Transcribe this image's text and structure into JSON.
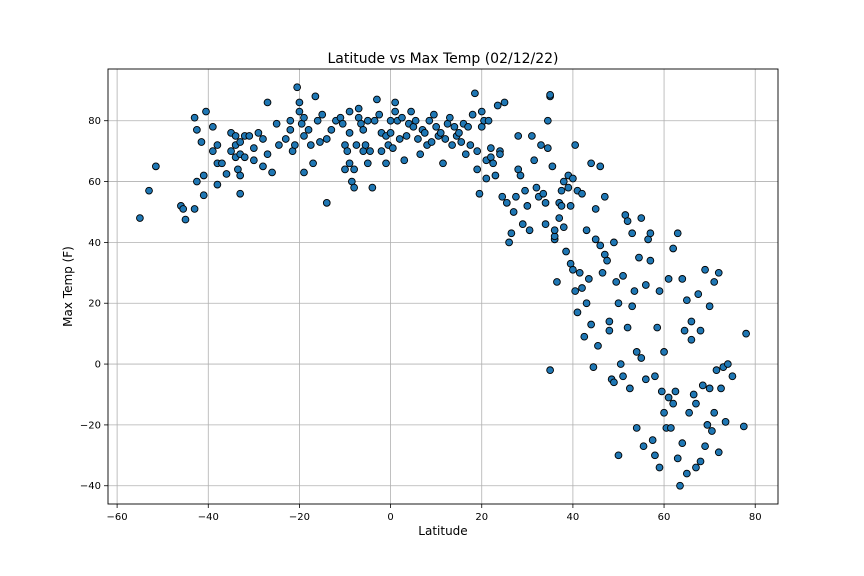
{
  "chart_data": {
    "type": "scatter",
    "title": "Latitude vs Max Temp (02/12/22)",
    "xlabel": "Latitude",
    "ylabel": "Max Temp (F)",
    "xlim": [
      -62,
      85
    ],
    "ylim": [
      -46,
      97
    ],
    "xticks": [
      -60,
      -40,
      -20,
      0,
      20,
      40,
      60,
      80
    ],
    "yticks": [
      -40,
      -20,
      0,
      20,
      40,
      60,
      80
    ],
    "grid": true,
    "legend": "none",
    "marker_color": "#1f77b4",
    "marker_edge_color": "#000000",
    "points": [
      [
        -55,
        48
      ],
      [
        -53,
        57
      ],
      [
        -51.5,
        65
      ],
      [
        -46,
        52
      ],
      [
        -45.5,
        51
      ],
      [
        -45,
        47.5
      ],
      [
        -43,
        51
      ],
      [
        -42.5,
        60
      ],
      [
        -42.5,
        77
      ],
      [
        -43,
        81
      ],
      [
        -41,
        62
      ],
      [
        -41,
        55.5
      ],
      [
        -40.5,
        83
      ],
      [
        -41.5,
        73
      ],
      [
        -39,
        70
      ],
      [
        -39,
        78
      ],
      [
        -38,
        72
      ],
      [
        -38,
        66
      ],
      [
        -38,
        59
      ],
      [
        -37,
        66
      ],
      [
        -36,
        62.5
      ],
      [
        -35,
        76
      ],
      [
        -35,
        70
      ],
      [
        -34,
        68
      ],
      [
        -34,
        75
      ],
      [
        -34,
        72
      ],
      [
        -33.5,
        64
      ],
      [
        -33,
        62
      ],
      [
        -33,
        56
      ],
      [
        -33,
        69
      ],
      [
        -33,
        73
      ],
      [
        -32,
        75
      ],
      [
        -32,
        68
      ],
      [
        -31,
        75
      ],
      [
        -30,
        67
      ],
      [
        -30,
        71
      ],
      [
        -29,
        76
      ],
      [
        -28,
        74
      ],
      [
        -28,
        65
      ],
      [
        -27,
        69
      ],
      [
        -27,
        86
      ],
      [
        -26,
        63
      ],
      [
        -25,
        79
      ],
      [
        -24.5,
        72
      ],
      [
        -23,
        74
      ],
      [
        -22,
        80
      ],
      [
        -22,
        77
      ],
      [
        -21.5,
        70
      ],
      [
        -21,
        72
      ],
      [
        -20.5,
        91
      ],
      [
        -20,
        83
      ],
      [
        -20,
        86
      ],
      [
        -19.5,
        79
      ],
      [
        -19,
        81
      ],
      [
        -19,
        75
      ],
      [
        -19,
        63
      ],
      [
        -18,
        77
      ],
      [
        -17.5,
        72
      ],
      [
        -17,
        66
      ],
      [
        -16.5,
        88
      ],
      [
        -16,
        80
      ],
      [
        -15.5,
        73
      ],
      [
        -15,
        82
      ],
      [
        -14,
        74
      ],
      [
        -14,
        53
      ],
      [
        -13,
        77
      ],
      [
        -12,
        80
      ],
      [
        -11,
        81
      ],
      [
        -10.5,
        79
      ],
      [
        -10,
        72
      ],
      [
        -10,
        64
      ],
      [
        -9.5,
        70
      ],
      [
        -9,
        83
      ],
      [
        -9,
        76
      ],
      [
        -9,
        66
      ],
      [
        -8.5,
        60
      ],
      [
        -8,
        58
      ],
      [
        -8,
        64
      ],
      [
        -7.5,
        72
      ],
      [
        -7,
        84
      ],
      [
        -7,
        81
      ],
      [
        -6.5,
        79
      ],
      [
        -6,
        77
      ],
      [
        -6,
        70
      ],
      [
        -5.5,
        72
      ],
      [
        -5,
        66
      ],
      [
        -5,
        80
      ],
      [
        -4.5,
        70
      ],
      [
        -4,
        58
      ],
      [
        -3.5,
        80
      ],
      [
        -3,
        87
      ],
      [
        -2.5,
        82
      ],
      [
        -2,
        76
      ],
      [
        -2,
        70
      ],
      [
        -1,
        75
      ],
      [
        -1,
        66
      ],
      [
        -0.5,
        72
      ],
      [
        0,
        80
      ],
      [
        0,
        76
      ],
      [
        0.5,
        71
      ],
      [
        1,
        83
      ],
      [
        1,
        86
      ],
      [
        1.5,
        80
      ],
      [
        2,
        74
      ],
      [
        2.5,
        81
      ],
      [
        3,
        67
      ],
      [
        3.5,
        75
      ],
      [
        4,
        79
      ],
      [
        4.5,
        83
      ],
      [
        5,
        78
      ],
      [
        5.5,
        80
      ],
      [
        6,
        74
      ],
      [
        6.5,
        69
      ],
      [
        7,
        77
      ],
      [
        7.5,
        76
      ],
      [
        8,
        72
      ],
      [
        8.5,
        80
      ],
      [
        9,
        73
      ],
      [
        9.5,
        82
      ],
      [
        10,
        78
      ],
      [
        10.5,
        75
      ],
      [
        11,
        76
      ],
      [
        11.5,
        66
      ],
      [
        12,
        74
      ],
      [
        12.5,
        79
      ],
      [
        13,
        81
      ],
      [
        13.5,
        72
      ],
      [
        14,
        78
      ],
      [
        14.5,
        75
      ],
      [
        15,
        76
      ],
      [
        15.5,
        73
      ],
      [
        16,
        79
      ],
      [
        16.5,
        69
      ],
      [
        17,
        78
      ],
      [
        17.5,
        72
      ],
      [
        18,
        82
      ],
      [
        18.5,
        89
      ],
      [
        19,
        70
      ],
      [
        19,
        64
      ],
      [
        19.5,
        56
      ],
      [
        20,
        83
      ],
      [
        20,
        78
      ],
      [
        20.5,
        80
      ],
      [
        21,
        61
      ],
      [
        21,
        67
      ],
      [
        21.5,
        80
      ],
      [
        22,
        71
      ],
      [
        22,
        68
      ],
      [
        22.5,
        66
      ],
      [
        23,
        62
      ],
      [
        23.5,
        85
      ],
      [
        24,
        70
      ],
      [
        24,
        69
      ],
      [
        24.5,
        55
      ],
      [
        25,
        86
      ],
      [
        25.5,
        53
      ],
      [
        26,
        40
      ],
      [
        26.5,
        43
      ],
      [
        27,
        50
      ],
      [
        27.5,
        55
      ],
      [
        28,
        75
      ],
      [
        28,
        64
      ],
      [
        28.5,
        62
      ],
      [
        29,
        46
      ],
      [
        29.5,
        57
      ],
      [
        30,
        52
      ],
      [
        30.5,
        44
      ],
      [
        31,
        75
      ],
      [
        31.5,
        67
      ],
      [
        32,
        58
      ],
      [
        32.5,
        55
      ],
      [
        33,
        72
      ],
      [
        33.5,
        56
      ],
      [
        34,
        53
      ],
      [
        34,
        46
      ],
      [
        34.5,
        71
      ],
      [
        34.5,
        80
      ],
      [
        35,
        88
      ],
      [
        35,
        88.5
      ],
      [
        35,
        -2
      ],
      [
        35.5,
        65
      ],
      [
        36,
        41
      ],
      [
        36,
        42
      ],
      [
        36,
        44
      ],
      [
        36.5,
        27
      ],
      [
        37,
        53
      ],
      [
        37,
        48
      ],
      [
        37.5,
        52
      ],
      [
        37.5,
        57
      ],
      [
        38,
        60
      ],
      [
        38,
        45
      ],
      [
        38.5,
        37
      ],
      [
        39,
        62
      ],
      [
        39,
        58
      ],
      [
        39.5,
        52
      ],
      [
        39.5,
        33
      ],
      [
        40,
        31
      ],
      [
        40,
        61
      ],
      [
        40.5,
        24
      ],
      [
        40.5,
        72
      ],
      [
        41,
        17
      ],
      [
        41,
        57
      ],
      [
        41.5,
        30
      ],
      [
        42,
        56
      ],
      [
        42,
        25
      ],
      [
        42.5,
        9
      ],
      [
        43,
        44
      ],
      [
        43,
        20
      ],
      [
        43.5,
        28
      ],
      [
        44,
        66
      ],
      [
        44,
        13
      ],
      [
        44.5,
        -1
      ],
      [
        45,
        51
      ],
      [
        45,
        41
      ],
      [
        45.5,
        6
      ],
      [
        46,
        65
      ],
      [
        46,
        39
      ],
      [
        46.5,
        30
      ],
      [
        47,
        55
      ],
      [
        47,
        36
      ],
      [
        47.5,
        34
      ],
      [
        48,
        11
      ],
      [
        48,
        14
      ],
      [
        48.5,
        -5
      ],
      [
        49,
        -6
      ],
      [
        49,
        40
      ],
      [
        49.5,
        27
      ],
      [
        50,
        -30
      ],
      [
        50,
        20
      ],
      [
        50.5,
        0
      ],
      [
        51,
        -4
      ],
      [
        51,
        29
      ],
      [
        51.5,
        49
      ],
      [
        52,
        47
      ],
      [
        52,
        12
      ],
      [
        52.5,
        -8
      ],
      [
        53,
        43
      ],
      [
        53,
        19
      ],
      [
        53.5,
        24
      ],
      [
        54,
        4
      ],
      [
        54,
        -21
      ],
      [
        54.5,
        35
      ],
      [
        55,
        48
      ],
      [
        55,
        2
      ],
      [
        55.5,
        -27
      ],
      [
        56,
        26
      ],
      [
        56,
        -5
      ],
      [
        56.5,
        41
      ],
      [
        57,
        43
      ],
      [
        57,
        34
      ],
      [
        57.5,
        -25
      ],
      [
        58,
        -30
      ],
      [
        58,
        -4
      ],
      [
        58.5,
        12
      ],
      [
        59,
        -34
      ],
      [
        59,
        24
      ],
      [
        59.5,
        -9
      ],
      [
        60,
        4
      ],
      [
        60,
        -16
      ],
      [
        60.5,
        -21
      ],
      [
        61,
        28
      ],
      [
        61,
        -11
      ],
      [
        61.5,
        -21
      ],
      [
        62,
        38
      ],
      [
        62,
        -13
      ],
      [
        62.5,
        -9
      ],
      [
        63,
        43
      ],
      [
        63,
        -31
      ],
      [
        63.5,
        -40
      ],
      [
        64,
        -26
      ],
      [
        64,
        28
      ],
      [
        64.5,
        11
      ],
      [
        65,
        -36
      ],
      [
        65,
        21
      ],
      [
        65.5,
        -16
      ],
      [
        66,
        8
      ],
      [
        66,
        14
      ],
      [
        66.5,
        -10
      ],
      [
        67,
        -34
      ],
      [
        67,
        -13
      ],
      [
        67.5,
        23
      ],
      [
        68,
        -32
      ],
      [
        68,
        11
      ],
      [
        68.5,
        -7
      ],
      [
        69,
        -27
      ],
      [
        69,
        31
      ],
      [
        69.5,
        -20
      ],
      [
        70,
        -8
      ],
      [
        70,
        19
      ],
      [
        70.5,
        -22
      ],
      [
        71,
        -16
      ],
      [
        71,
        27
      ],
      [
        71.5,
        -2
      ],
      [
        72,
        -29
      ],
      [
        72,
        30
      ],
      [
        72.5,
        -8
      ],
      [
        73,
        -1
      ],
      [
        73.5,
        -19
      ],
      [
        74,
        0
      ],
      [
        75,
        -4
      ],
      [
        77.5,
        -20.5
      ],
      [
        78,
        10
      ]
    ]
  }
}
